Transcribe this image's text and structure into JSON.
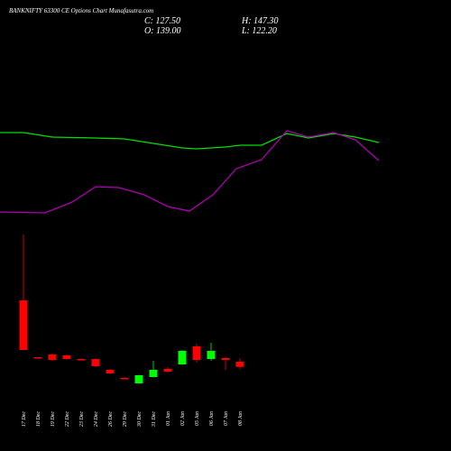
{
  "chart_data": {
    "type": "candlestick",
    "title": "BANKNIFTY 63300 CE Options  Chart Munafasutra.com",
    "ohlc_labels": {
      "close": "C: 127.50",
      "open": "O: 139.00",
      "high": "H: 147.30",
      "low": "L: 122.20"
    },
    "categories": [
      "17 Dec",
      "18 Dec",
      "19 Dec",
      "22 Dec",
      "23 Dec",
      "24 Dec",
      "26 Dec",
      "29 Dec",
      "30 Dec",
      "31 Dec",
      "01 Jan",
      "02 Jan",
      "05 Jan",
      "06 Jan",
      "07 Jan",
      "08 Jan"
    ],
    "open": [
      275,
      149,
      155,
      153,
      145,
      145,
      121,
      103,
      91,
      105,
      123,
      133,
      173,
      145,
      147,
      139
    ],
    "high": [
      421,
      149,
      157,
      155,
      146,
      146,
      123,
      105,
      110,
      141,
      127,
      165,
      179,
      181,
      149,
      147.3
    ],
    "low": [
      165,
      147,
      141,
      143,
      142,
      127,
      111,
      100,
      90,
      104,
      115,
      132,
      137,
      141,
      121,
      122.2
    ],
    "close": [
      165,
      147,
      143,
      145,
      143,
      129,
      113,
      102,
      109,
      121,
      117,
      163,
      143,
      163,
      143,
      127.5
    ],
    "up_color": "#00ff00",
    "down_color": "#ff0000",
    "ylim": [
      -59,
      441
    ],
    "lines": {
      "xlim": [
        -1.625,
        29.625
      ],
      "ylim": [
        0,
        120
      ],
      "series": [
        {
          "color": "#00dd00",
          "x": [
            -1.625,
            0,
            2,
            5,
            7,
            9,
            11,
            12,
            14,
            15,
            16.5,
            18.25,
            19.75,
            21.5,
            23,
            24.625
          ],
          "values": [
            103,
            103,
            98,
            97,
            96,
            91,
            86,
            85,
            87,
            89,
            89,
            102,
            97,
            102,
            98,
            92
          ]
        },
        {
          "color": "#b000b0",
          "x": [
            -1.625,
            1.5,
            3.375,
            5,
            6.625,
            8.375,
            10,
            11.5,
            13.125,
            14.75,
            16.5,
            18.25,
            19.75,
            21.5,
            23,
            24.625
          ],
          "values": [
            15,
            14,
            26,
            43,
            42,
            34,
            21,
            16,
            34,
            63,
            73,
            105,
            98,
            103,
            95,
            72
          ]
        }
      ]
    }
  }
}
